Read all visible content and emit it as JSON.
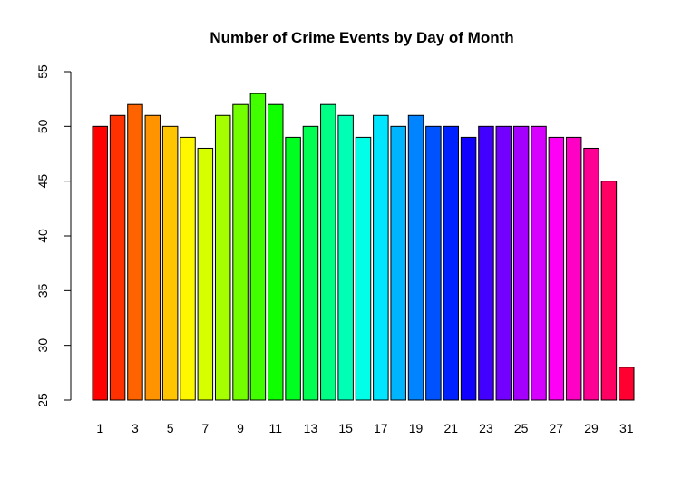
{
  "chart_data": {
    "type": "bar",
    "title": "Number of Crime Events by Day of Month",
    "xlabel": "",
    "ylabel": "",
    "categories": [
      "1",
      "2",
      "3",
      "4",
      "5",
      "6",
      "7",
      "8",
      "9",
      "10",
      "11",
      "12",
      "13",
      "14",
      "15",
      "16",
      "17",
      "18",
      "19",
      "20",
      "21",
      "22",
      "23",
      "24",
      "25",
      "26",
      "27",
      "28",
      "29",
      "30",
      "31"
    ],
    "values": [
      50,
      51,
      52,
      51,
      50,
      49,
      48,
      51,
      52,
      53,
      52,
      49,
      50,
      52,
      51,
      49,
      51,
      50,
      51,
      50,
      50,
      49,
      50,
      50,
      50,
      50,
      49,
      49,
      48,
      45,
      28
    ],
    "x_tick_labels": [
      "1",
      "3",
      "5",
      "7",
      "9",
      "11",
      "13",
      "15",
      "17",
      "19",
      "21",
      "23",
      "25",
      "27",
      "29",
      "31"
    ],
    "ylim": [
      25,
      55
    ],
    "y_ticks": [
      "25",
      "30",
      "35",
      "40",
      "45",
      "50",
      "55"
    ],
    "grid": false,
    "legend": "none",
    "colors": [
      "#FF0000",
      "#FF3100",
      "#FF6300",
      "#FF9400",
      "#FFC500",
      "#FFF700",
      "#D6FF00",
      "#A5FF00",
      "#73FF00",
      "#42FF00",
      "#10FF00",
      "#00FF21",
      "#00FF52",
      "#00FF84",
      "#00FFB5",
      "#00FFE6",
      "#00E6FF",
      "#00B5FF",
      "#0084FF",
      "#0052FF",
      "#0021FF",
      "#1000FF",
      "#4200FF",
      "#7300FF",
      "#A500FF",
      "#D600FF",
      "#FF00F7",
      "#FF00C5",
      "#FF0094",
      "#FF0063",
      "#FF0031"
    ]
  }
}
